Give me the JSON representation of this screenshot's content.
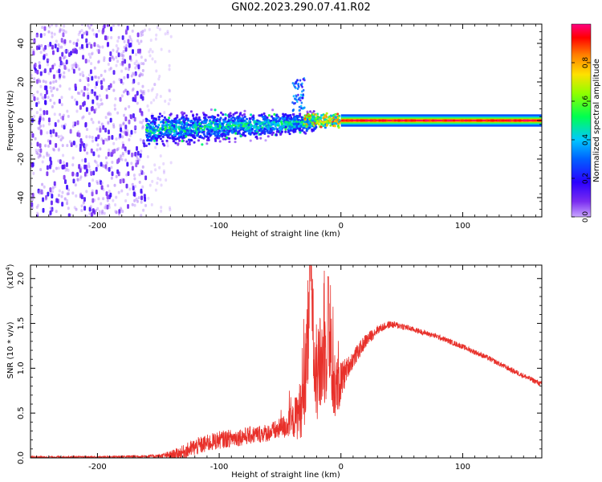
{
  "title": "GN02.2023.290.07.41.R02",
  "chart_data": [
    {
      "type": "heatmap",
      "name": "spectrogram",
      "xlabel": "Height of straight line (km)",
      "ylabel": "Frequency (Hz)",
      "xlim": [
        -255,
        165
      ],
      "ylim": [
        -50,
        50
      ],
      "xticks": [
        -200,
        -100,
        0,
        100
      ],
      "xtick_labels": [
        "-200",
        "-100",
        "0",
        "100"
      ],
      "yticks": [
        -40,
        -20,
        0,
        20,
        40
      ],
      "ytick_labels": [
        "-40",
        "-20",
        "0",
        "20",
        "40"
      ],
      "colorbar": {
        "label": "Normalized spectral amplitude",
        "range": [
          0,
          1
        ],
        "ticks": [
          0.0,
          0.2,
          0.4,
          0.6,
          0.8
        ],
        "tick_labels": [
          "0.0",
          "0.2",
          "0.4",
          "0.6",
          "0.8"
        ],
        "colors": [
          "#b366ff",
          "#3a00ff",
          "#0040ff",
          "#00c8ff",
          "#00ff66",
          "#a0ff00",
          "#ffe000",
          "#ff8000",
          "#ff0000",
          "#ff0080"
        ]
      },
      "regions": [
        {
          "x": [
            -255,
            -160
          ],
          "description": "noise",
          "freq_spread": 50,
          "amplitude": 0.1
        },
        {
          "x": [
            -160,
            -20
          ],
          "description": "signal band",
          "freq_center": -5,
          "freq_spread": 8,
          "amplitude": 0.45
        },
        {
          "x": [
            -35,
            -30
          ],
          "description": "spike",
          "freq_center": 10,
          "amplitude": 0.3
        },
        {
          "x": [
            -30,
            0
          ],
          "description": "transition",
          "freq_center": 0,
          "amplitude": 0.75
        },
        {
          "x": [
            0,
            165
          ],
          "description": "steady tone",
          "freq_center": 0,
          "amplitude": 0.95
        }
      ],
      "color": "#7b2cf0"
    },
    {
      "type": "line",
      "name": "snr",
      "xlabel": "Height of straight line (km)",
      "ylabel": "SNR (10 * v/v)",
      "y_scale_label": "(x10",
      "y_scale_exp": "4",
      "xlim": [
        -255,
        165
      ],
      "ylim": [
        0,
        2.15
      ],
      "xticks": [
        -200,
        -100,
        0,
        100
      ],
      "xtick_labels": [
        "-200",
        "-100",
        "0",
        "100"
      ],
      "yticks": [
        0.0,
        0.5,
        1.0,
        1.5,
        2.0
      ],
      "ytick_labels": [
        "0.0",
        "0.5",
        "1.0",
        "1.5",
        "2.0"
      ],
      "color": "#e8302a",
      "x": [
        -255,
        -200,
        -150,
        -140,
        -130,
        -120,
        -100,
        -80,
        -60,
        -50,
        -40,
        -35,
        -30,
        -27,
        -25,
        -22,
        -20,
        -15,
        -10,
        -5,
        0,
        5,
        10,
        20,
        30,
        40,
        50,
        60,
        80,
        100,
        120,
        140,
        165
      ],
      "y": [
        0.01,
        0.01,
        0.02,
        0.03,
        0.06,
        0.12,
        0.2,
        0.24,
        0.28,
        0.32,
        0.4,
        0.5,
        0.65,
        1.3,
        2.15,
        1.2,
        0.85,
        1.1,
        1.3,
        0.75,
        0.85,
        1.0,
        1.1,
        1.3,
        1.43,
        1.49,
        1.47,
        1.43,
        1.35,
        1.24,
        1.12,
        0.98,
        0.82
      ],
      "noise_amplitude": [
        0.01,
        0.01,
        0.02,
        0.05,
        0.08,
        0.1,
        0.1,
        0.1,
        0.1,
        0.12,
        0.18,
        0.3,
        0.4,
        0.6,
        0.4,
        0.5,
        0.5,
        0.6,
        0.6,
        0.4,
        0.25,
        0.12,
        0.1,
        0.08,
        0.05,
        0.04,
        0.04,
        0.03,
        0.03,
        0.03,
        0.03,
        0.03,
        0.03
      ]
    }
  ]
}
